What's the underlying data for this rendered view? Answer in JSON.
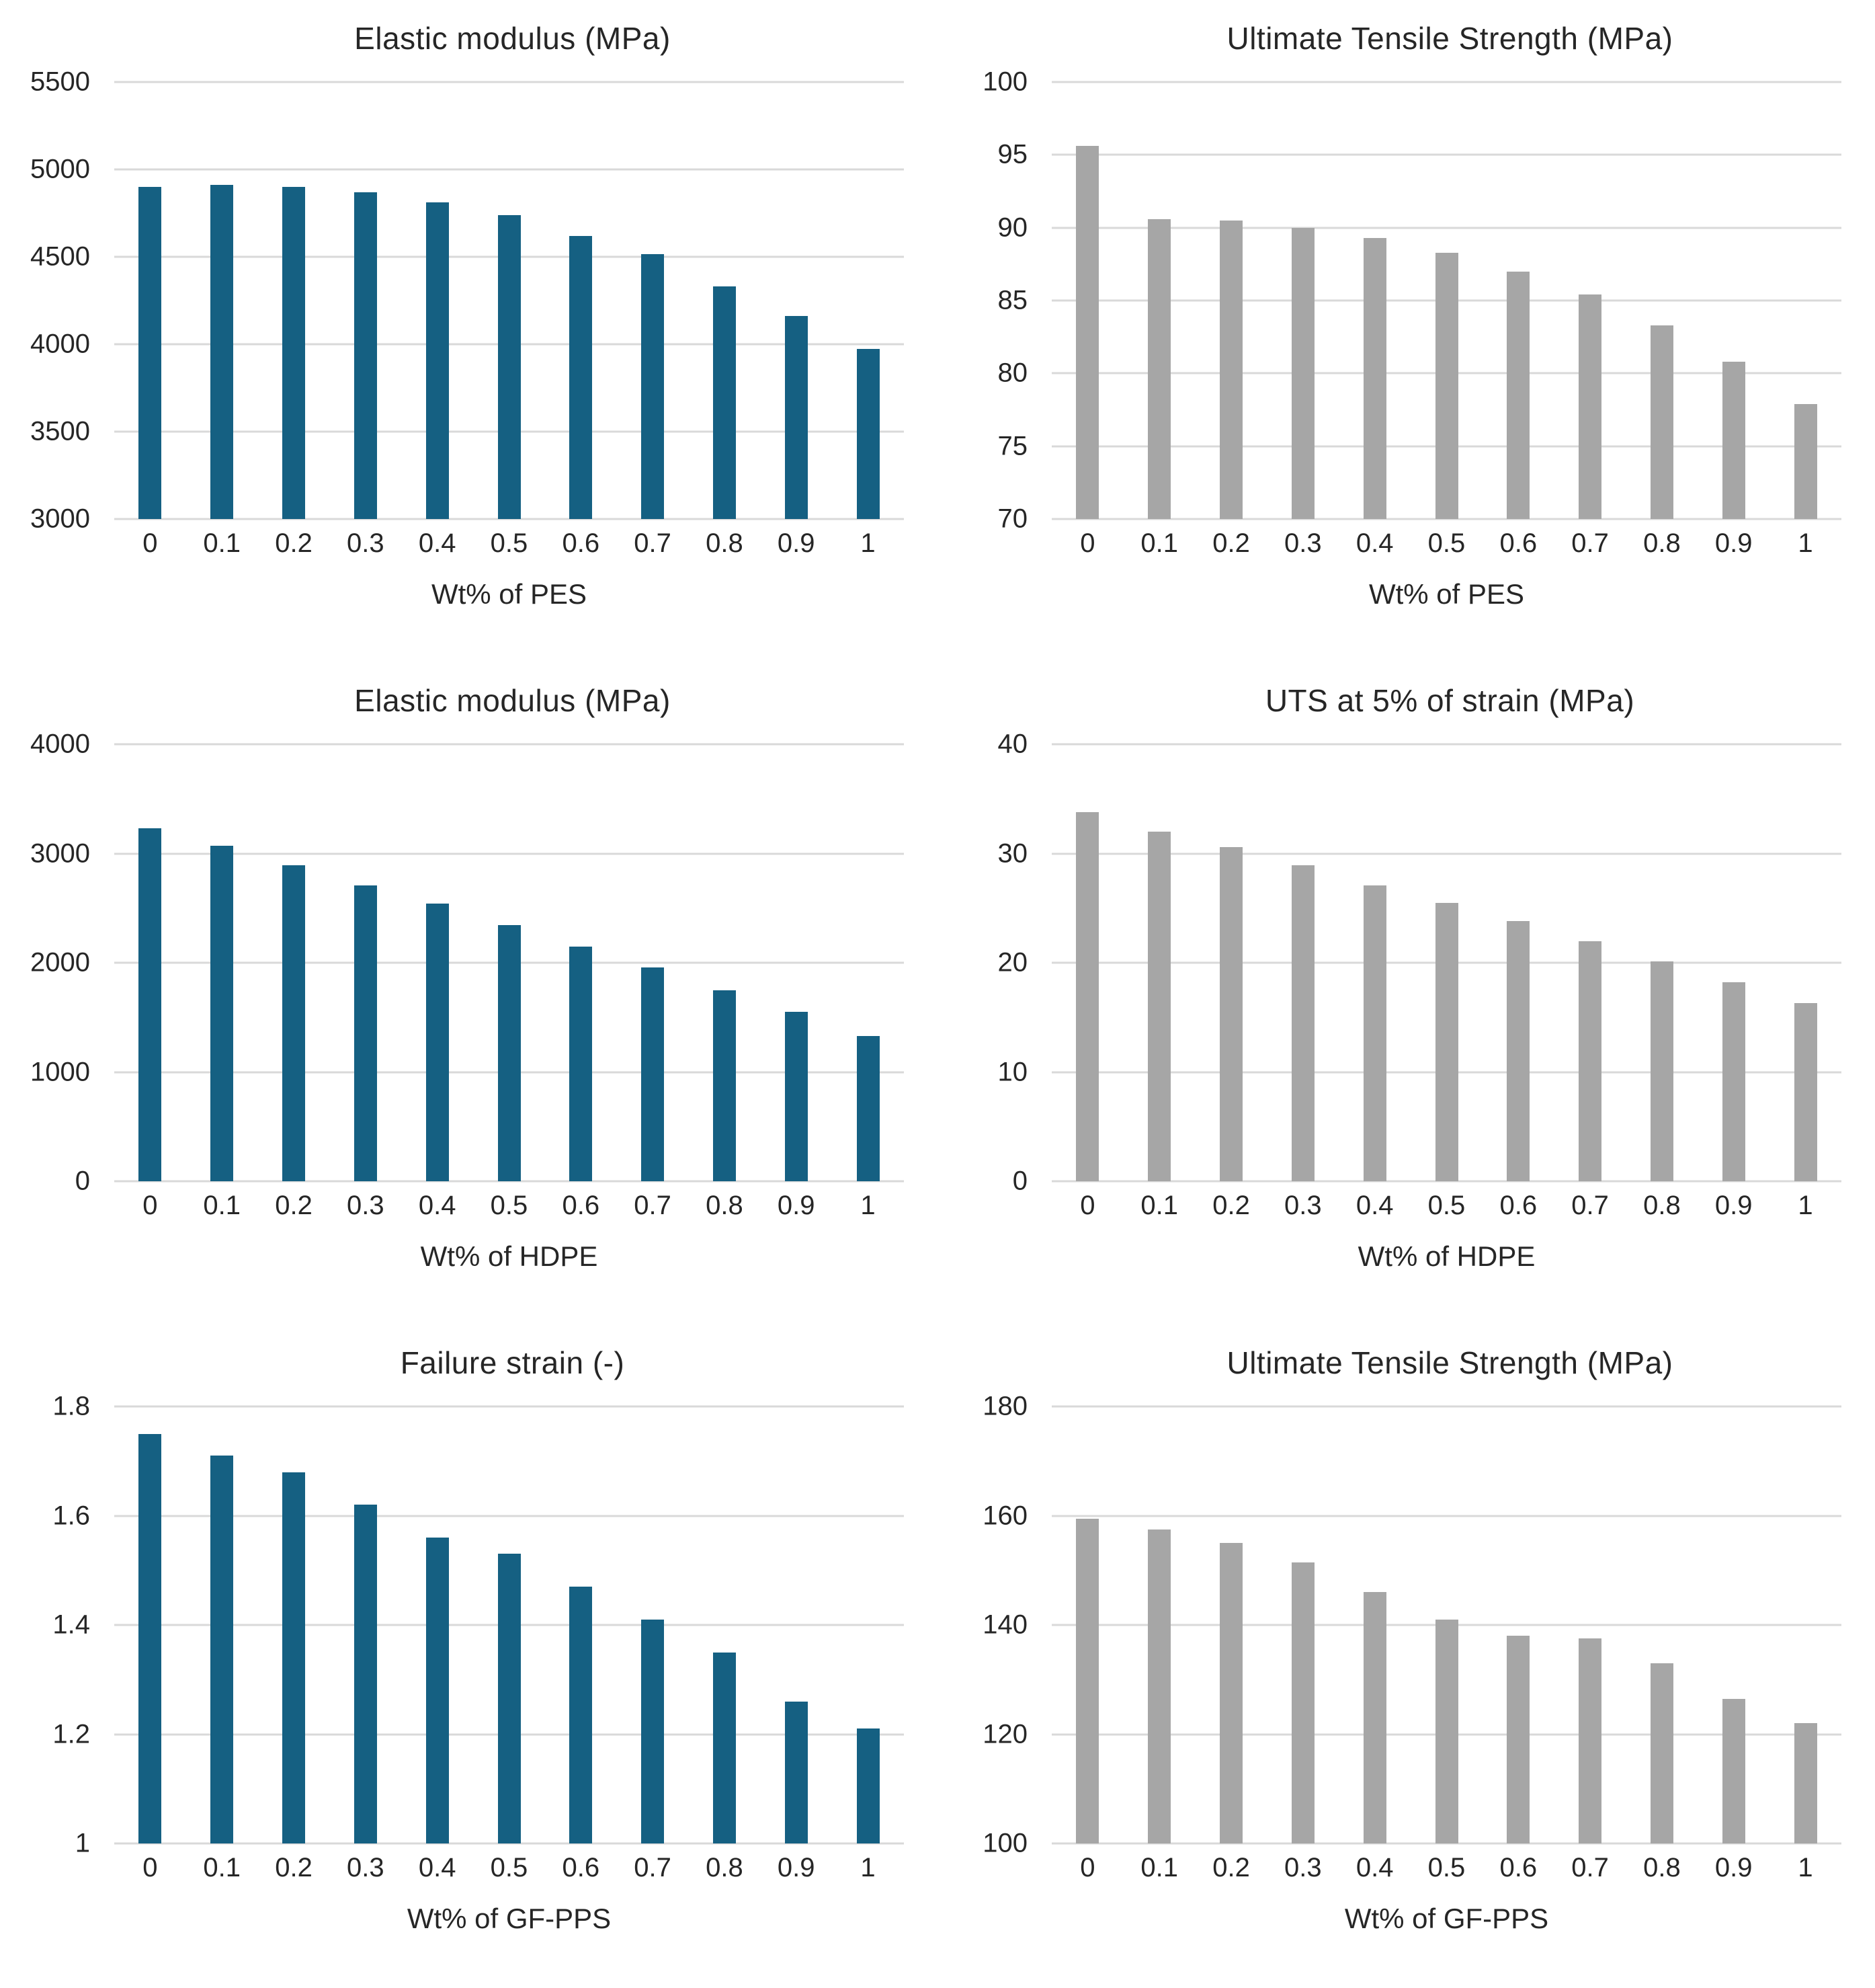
{
  "styles": {
    "bar_teal": "#156082",
    "bar_gray": "#A6A6A6",
    "gridline_color": "#D9D9D9",
    "text_color": "#262626"
  },
  "chart_data": [
    {
      "type": "bar",
      "title": "Elastic modulus (MPa)",
      "xlabel": "Wt% of PES",
      "ylabel": "",
      "categories": [
        "0",
        "0.1",
        "0.2",
        "0.3",
        "0.4",
        "0.5",
        "0.6",
        "0.7",
        "0.8",
        "0.9",
        "1"
      ],
      "values": [
        4900,
        4910,
        4900,
        4870,
        4810,
        4740,
        4620,
        4515,
        4330,
        4160,
        3975
      ],
      "ylim": [
        3000,
        5500
      ],
      "ystep": 500,
      "yticks": [
        "5500",
        "5000",
        "4500",
        "4000",
        "3500",
        "3000"
      ],
      "bar_color": "#156082",
      "grid": true,
      "legend": false
    },
    {
      "type": "bar",
      "title": "Ultimate Tensile Strength (MPa)",
      "xlabel": "Wt% of PES",
      "ylabel": "",
      "categories": [
        "0",
        "0.1",
        "0.2",
        "0.3",
        "0.4",
        "0.5",
        "0.6",
        "0.7",
        "0.8",
        "0.9",
        "1"
      ],
      "values": [
        95.6,
        90.6,
        90.5,
        90.0,
        89.3,
        88.3,
        87.0,
        85.4,
        83.3,
        80.8,
        77.9
      ],
      "ylim": [
        70,
        100
      ],
      "ystep": 5,
      "yticks": [
        "100",
        "95",
        "90",
        "85",
        "80",
        "75",
        "70"
      ],
      "bar_color": "#A6A6A6",
      "grid": true,
      "legend": false
    },
    {
      "type": "bar",
      "title": "Elastic modulus (MPa)",
      "xlabel": "Wt% of HDPE",
      "ylabel": "",
      "categories": [
        "0",
        "0.1",
        "0.2",
        "0.3",
        "0.4",
        "0.5",
        "0.6",
        "0.7",
        "0.8",
        "0.9",
        "1"
      ],
      "values": [
        3230,
        3070,
        2890,
        2705,
        2540,
        2345,
        2150,
        1960,
        1745,
        1550,
        1330
      ],
      "ylim": [
        0,
        4000
      ],
      "ystep": 1000,
      "yticks": [
        "4000",
        "3000",
        "2000",
        "1000",
        "0"
      ],
      "bar_color": "#156082",
      "grid": true,
      "legend": false
    },
    {
      "type": "bar",
      "title": "UTS at 5% of strain (MPa)",
      "xlabel": "Wt% of HDPE",
      "ylabel": "",
      "categories": [
        "0",
        "0.1",
        "0.2",
        "0.3",
        "0.4",
        "0.5",
        "0.6",
        "0.7",
        "0.8",
        "0.9",
        "1"
      ],
      "values": [
        33.8,
        32.0,
        30.6,
        28.9,
        27.1,
        25.5,
        23.8,
        22.0,
        20.1,
        18.2,
        16.3
      ],
      "ylim": [
        0,
        40
      ],
      "ystep": 10,
      "yticks": [
        "40",
        "30",
        "20",
        "10",
        "0"
      ],
      "bar_color": "#A6A6A6",
      "grid": true,
      "legend": false
    },
    {
      "type": "bar",
      "title": "Failure strain (-)",
      "xlabel": "Wt% of GF-PPS",
      "ylabel": "",
      "categories": [
        "0",
        "0.1",
        "0.2",
        "0.3",
        "0.4",
        "0.5",
        "0.6",
        "0.7",
        "0.8",
        "0.9",
        "1"
      ],
      "values": [
        1.75,
        1.71,
        1.68,
        1.62,
        1.56,
        1.53,
        1.47,
        1.41,
        1.35,
        1.26,
        1.21
      ],
      "ylim": [
        1,
        1.8
      ],
      "ystep": 0.2,
      "yticks": [
        "1.8",
        "1.6",
        "1.4",
        "1.2",
        "1"
      ],
      "bar_color": "#156082",
      "grid": true,
      "legend": false
    },
    {
      "type": "bar",
      "title": "Ultimate Tensile Strength (MPa)",
      "xlabel": "Wt% of GF-PPS",
      "ylabel": "",
      "categories": [
        "0",
        "0.1",
        "0.2",
        "0.3",
        "0.4",
        "0.5",
        "0.6",
        "0.7",
        "0.8",
        "0.9",
        "1"
      ],
      "values": [
        159.5,
        157.5,
        155.0,
        151.5,
        146.0,
        141.0,
        138.0,
        137.5,
        133.0,
        126.5,
        122.0
      ],
      "ylim": [
        100,
        180
      ],
      "ystep": 20,
      "yticks": [
        "180",
        "160",
        "140",
        "120",
        "100"
      ],
      "bar_color": "#A6A6A6",
      "grid": true,
      "legend": false
    }
  ]
}
